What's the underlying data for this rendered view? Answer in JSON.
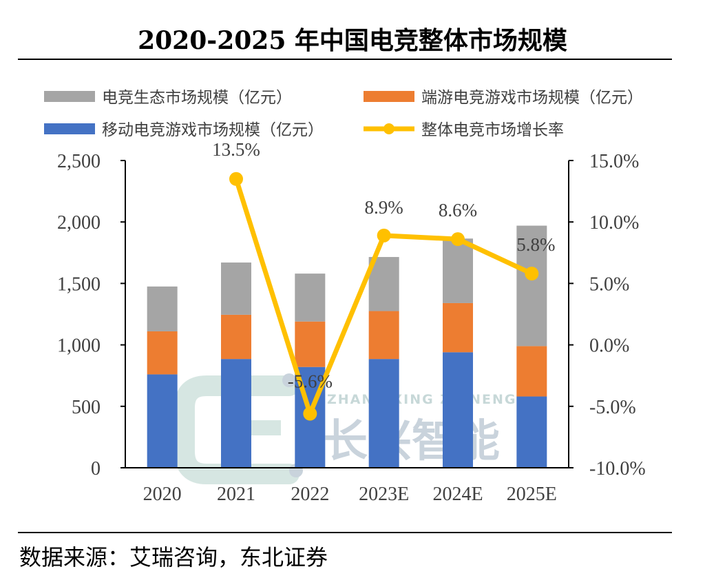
{
  "title": "2020-2025 年中国电竞整体市场规模",
  "source": "数据来源：艾瑞咨询，东北证券",
  "watermark": {
    "en": "ZHANG XING ZHINENG",
    "cn": "长兴智能"
  },
  "colors": {
    "ecosystem": "#a5a5a5",
    "client": "#ed7d31",
    "mobile": "#4472c4",
    "growth": "#ffc000"
  },
  "chart_data": {
    "type": "bar",
    "stacked": true,
    "categories": [
      "2020",
      "2021",
      "2022",
      "2023E",
      "2024E",
      "2025E"
    ],
    "series": [
      {
        "name": "移动电竞游戏市场规模（亿元）",
        "type": "bar",
        "axis": "left",
        "values": [
          760,
          885,
          820,
          885,
          940,
          580
        ]
      },
      {
        "name": "端游电竞游戏市场规模（亿元）",
        "type": "bar",
        "axis": "left",
        "values": [
          350,
          360,
          370,
          390,
          400,
          410
        ]
      },
      {
        "name": "电竞生态市场规模（亿元）",
        "type": "bar",
        "axis": "left",
        "values": [
          365,
          425,
          390,
          440,
          525,
          980
        ]
      },
      {
        "name": "整体电竞市场增长率",
        "type": "line",
        "axis": "right",
        "values": [
          null,
          13.5,
          -5.6,
          8.9,
          8.6,
          5.8
        ],
        "labels": [
          "",
          "13.5%",
          "-5.6%",
          "8.9%",
          "8.6%",
          "5.8%"
        ]
      }
    ],
    "y_left": {
      "min": 0,
      "max": 2500,
      "ticks": [
        "0",
        "500",
        "1,000",
        "1,500",
        "2,000",
        "2,500"
      ]
    },
    "y_right": {
      "min": -10,
      "max": 15,
      "ticks": [
        "-10.0%",
        "-5.0%",
        "0.0%",
        "5.0%",
        "10.0%",
        "15.0%"
      ]
    },
    "legend": [
      "电竞生态市场规模（亿元）",
      "端游电竞游戏市场规模（亿元）",
      "移动电竞游戏市场规模（亿元）",
      "整体电竞市场增长率"
    ],
    "legend_position": "top",
    "grid": false
  }
}
